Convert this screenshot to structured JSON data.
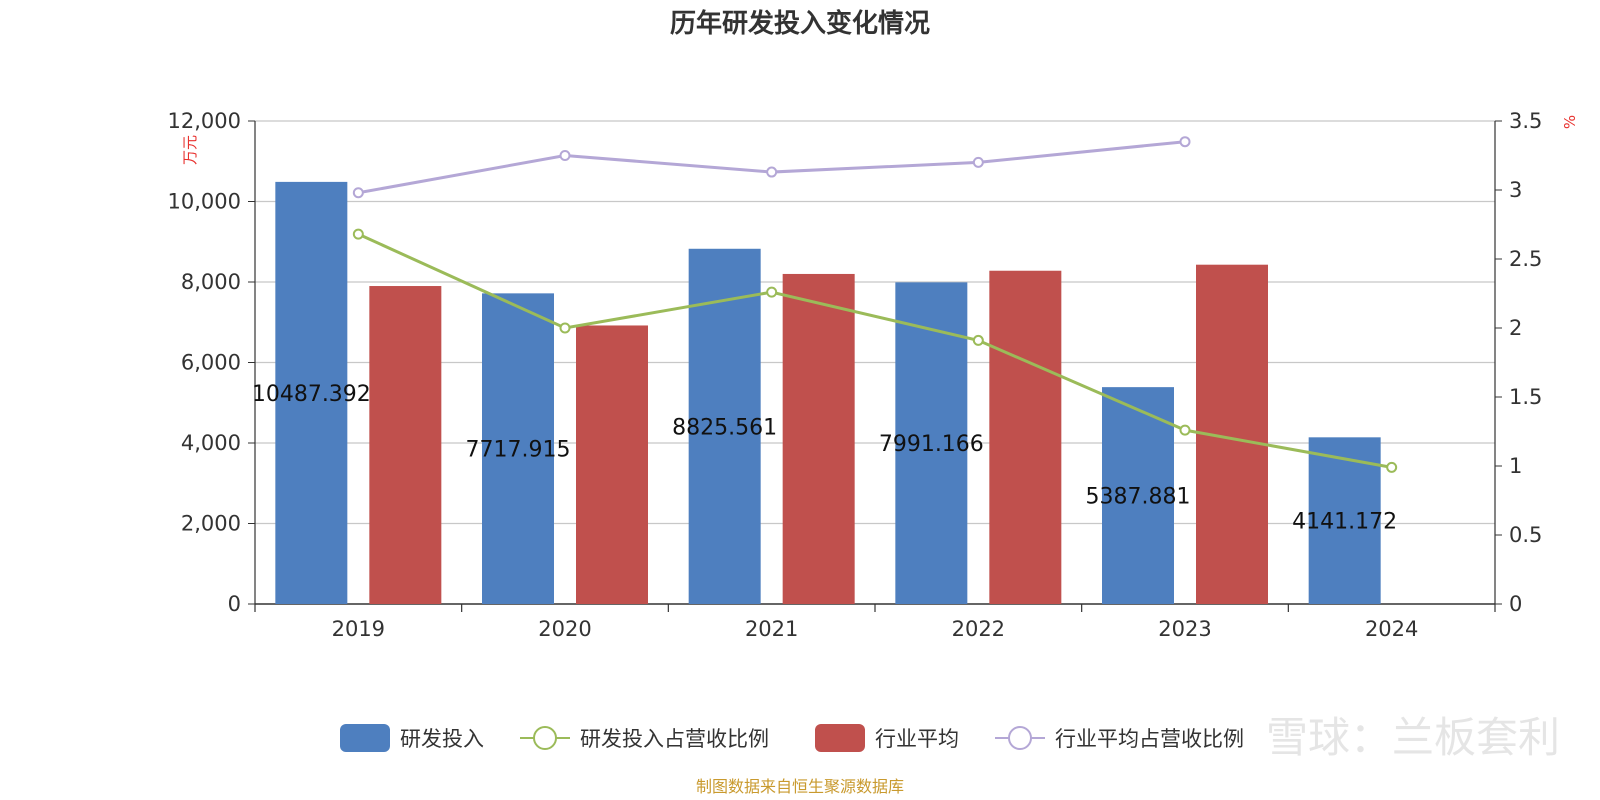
{
  "chart_data": {
    "type": "bar",
    "title": "历年研发投入变化情况",
    "categories": [
      "2019",
      "2020",
      "2021",
      "2022",
      "2023",
      "2024"
    ],
    "y_left": {
      "unit": "万元",
      "min": 0,
      "max": 12000,
      "ticks": [
        "0",
        "2,000",
        "4,000",
        "6,000",
        "8,000",
        "10,000",
        "12,000"
      ]
    },
    "y_right": {
      "unit": "%",
      "min": 0,
      "max": 3.5,
      "ticks": [
        "0",
        "0.5",
        "1",
        "1.5",
        "2",
        "2.5",
        "3",
        "3.5"
      ]
    },
    "series": [
      {
        "name": "研发投入",
        "type": "bar",
        "axis": "left",
        "color": "#4e7fbf",
        "values": [
          10487.392,
          7717.915,
          8825.561,
          7991.166,
          5387.881,
          4141.172
        ],
        "labels": [
          "10487.392",
          "7717.915",
          "8825.561",
          "7991.166",
          "5387.881",
          "4141.172"
        ]
      },
      {
        "name": "研发投入占营收比例",
        "type": "line",
        "axis": "right",
        "color": "#9bbb59",
        "values": [
          2.68,
          2.0,
          2.26,
          1.91,
          1.26,
          0.99
        ]
      },
      {
        "name": "行业平均",
        "type": "bar",
        "axis": "left",
        "color": "#c0504d",
        "values": [
          7900,
          6920,
          8200,
          8280,
          8430,
          null
        ]
      },
      {
        "name": "行业平均占营收比例",
        "type": "line",
        "axis": "right",
        "color": "#b4a7d6",
        "values": [
          2.98,
          3.25,
          3.13,
          3.2,
          3.35,
          null
        ]
      }
    ],
    "grid": true,
    "legend_position": "bottom"
  },
  "source_note": "制图数据来自恒生聚源数据库",
  "watermark": "雪球：兰板套利"
}
